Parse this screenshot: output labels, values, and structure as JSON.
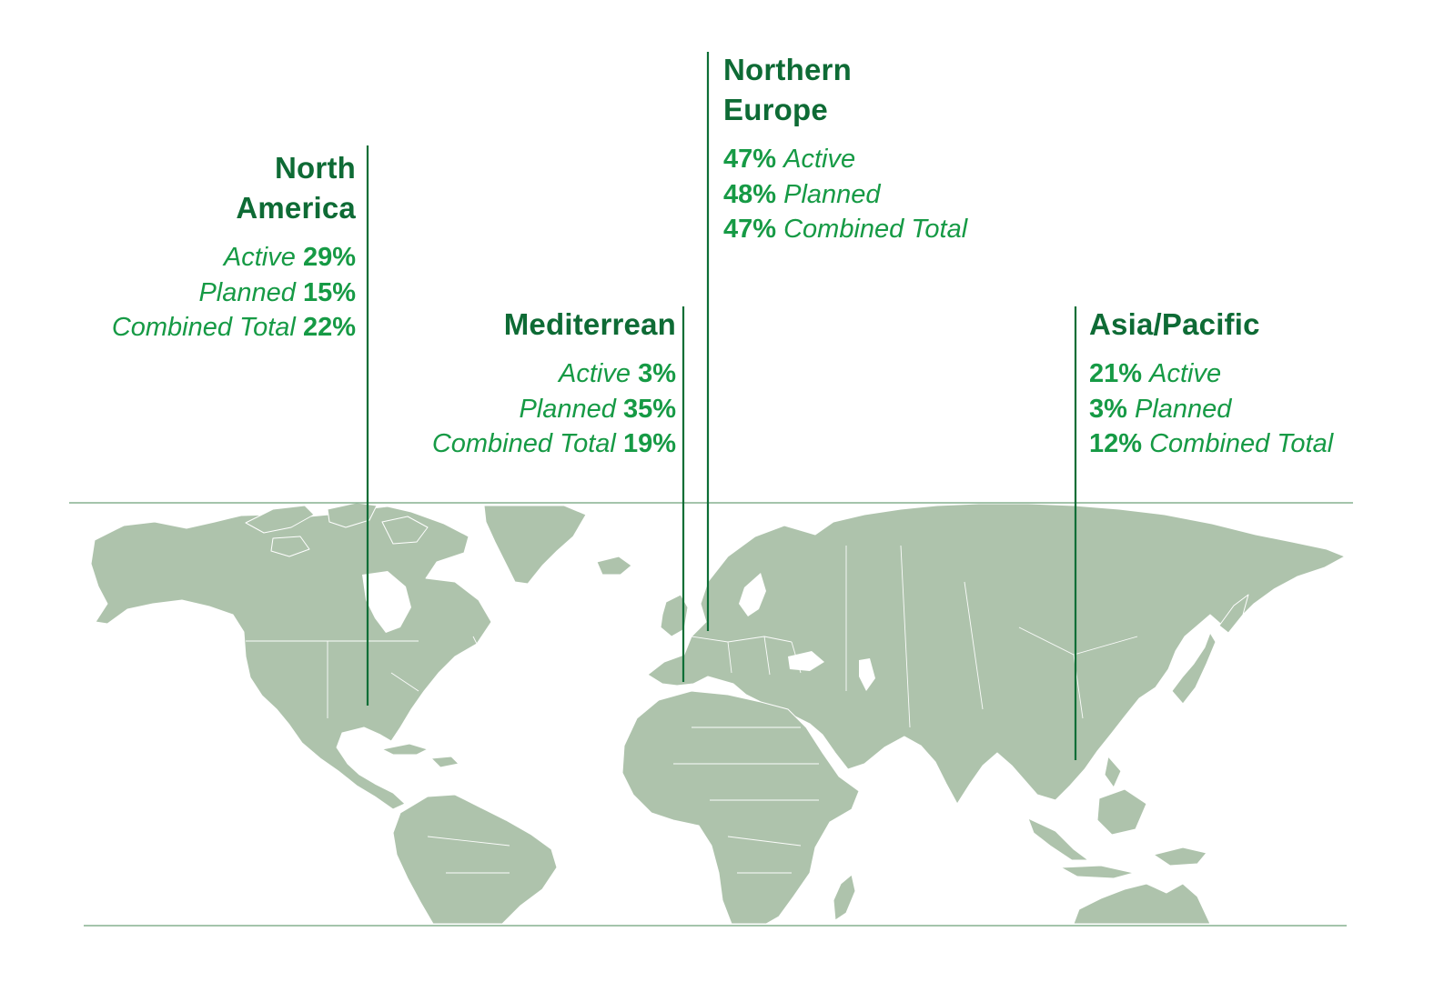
{
  "map": {
    "land_color": "#aec3ac",
    "frame_color": "#86b08f",
    "leader_color": "#0d6e36",
    "title_color": "#0e6b35",
    "stat_color": "#169a45"
  },
  "regions": [
    {
      "id": "north-america",
      "title_line1": "North",
      "title_line2": "America",
      "stats": [
        {
          "label": "Active",
          "value": "29%"
        },
        {
          "label": "Planned",
          "value": "15%"
        },
        {
          "label": "Combined Total",
          "value": "22%"
        }
      ]
    },
    {
      "id": "mediterrean",
      "title_line1": "Mediterrean",
      "title_line2": "",
      "stats": [
        {
          "label": "Active",
          "value": "3%"
        },
        {
          "label": "Planned",
          "value": "35%"
        },
        {
          "label": "Combined Total",
          "value": "19%"
        }
      ]
    },
    {
      "id": "northern-europe",
      "title_line1": "Northern",
      "title_line2": "Europe",
      "stats": [
        {
          "label": "Active",
          "value": "47%"
        },
        {
          "label": "Planned",
          "value": "48%"
        },
        {
          "label": "Combined Total",
          "value": "47%"
        }
      ]
    },
    {
      "id": "asia-pacific",
      "title_line1": "Asia/Pacific",
      "title_line2": "",
      "stats": [
        {
          "label": "Active",
          "value": "21%"
        },
        {
          "label": "Planned",
          "value": "3%"
        },
        {
          "label": "Combined Total",
          "value": "12%"
        }
      ]
    }
  ]
}
